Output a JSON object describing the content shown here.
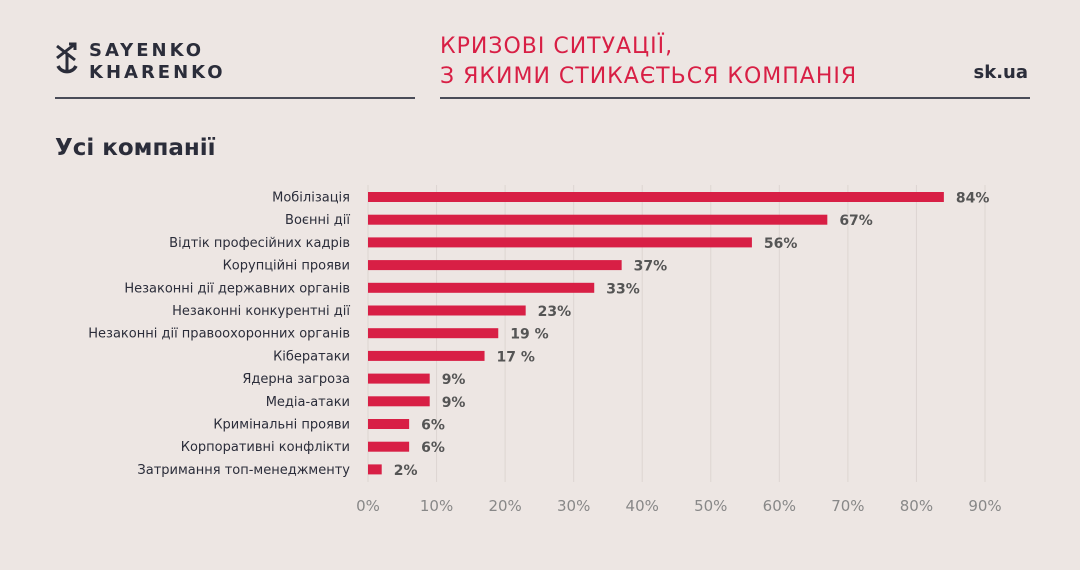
{
  "header": {
    "logo_line1": "SAYENKO",
    "logo_line2": "KHARENKO",
    "title_line1": "КРИЗОВІ СИТУАЦІЇ,",
    "title_line2": "З ЯКИМИ СТИКАЄТЬСЯ КОМПАНІЯ",
    "site": "sk.ua"
  },
  "colors": {
    "accent": "#d81f45",
    "text": "#2b2d3a",
    "background": "#ede6e3"
  },
  "chart_data": {
    "type": "bar",
    "orientation": "horizontal",
    "title": "Усі компанії",
    "categories": [
      "Мобілізація",
      "Воєнні дії",
      "Відтік професійних кадрів",
      "Корупційні прояви",
      "Незаконні дії державних органів",
      "Незаконні конкурентні дії",
      "Незаконні дії правоохоронних органів",
      "Кібератаки",
      "Ядерна загроза",
      "Медіа-атаки",
      "Кримінальні прояви",
      "Корпоративні конфлікти",
      "Затримання топ-менеджменту"
    ],
    "values": [
      84,
      67,
      56,
      37,
      33,
      23,
      19,
      17,
      9,
      9,
      6,
      6,
      2
    ],
    "value_labels": [
      "84%",
      "67%",
      "56%",
      "37%",
      "33%",
      "23%",
      "19 %",
      "17 %",
      "9%",
      "9%",
      "6%",
      "6%",
      "2%"
    ],
    "xlim": [
      0,
      90
    ],
    "ticks": [
      "0%",
      "10%",
      "20%",
      "30%",
      "40%",
      "50%",
      "60%",
      "70%",
      "80%",
      "90%"
    ],
    "grid": true,
    "bar_color": "#d81f45"
  }
}
